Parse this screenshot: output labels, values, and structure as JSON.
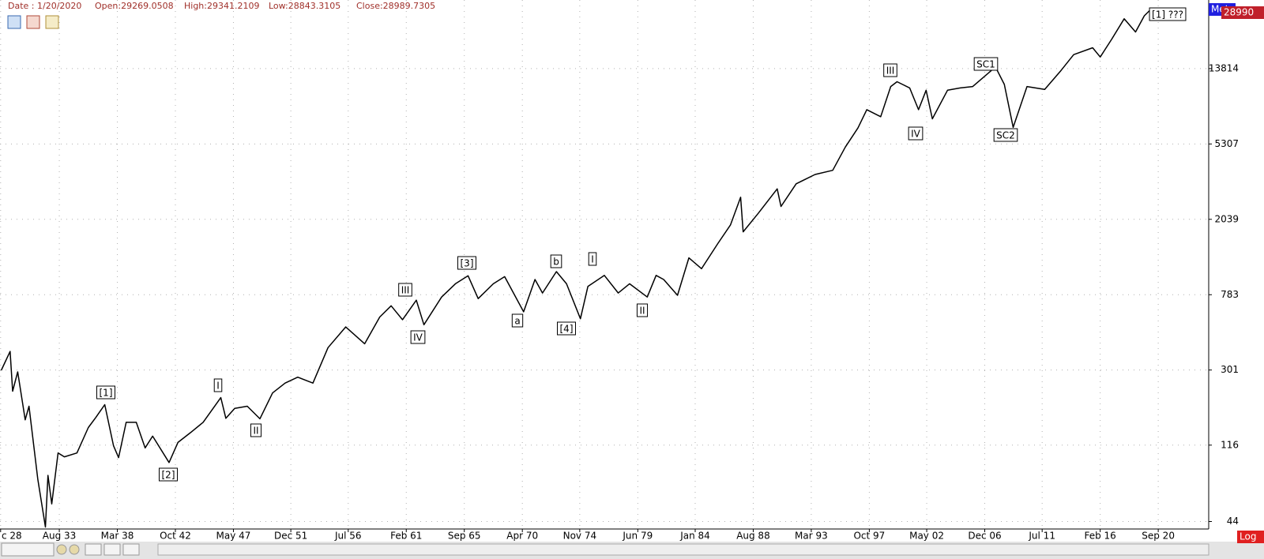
{
  "header": [
    "Date : 1/20/2020",
    "Open:29269.0508",
    "High:29341.2109",
    "Low:28843.3105",
    "Close:28989.7305"
  ],
  "side_labels": {
    "price": "28990",
    "tab": "Met",
    "scale": "Log"
  },
  "chart_data": {
    "type": "line",
    "log_scale": true,
    "grid": true,
    "color": "#000000",
    "xlim": [
      1928.9,
      2024.7
    ],
    "ylim": [
      40,
      33000
    ],
    "xticks": [
      {
        "value": 1928.95,
        "label": "c 28"
      },
      {
        "value": 1933.6,
        "label": "Aug 33"
      },
      {
        "value": 1938.2,
        "label": "Mar 38"
      },
      {
        "value": 1942.8,
        "label": "Oct 42"
      },
      {
        "value": 1947.4,
        "label": "May 47"
      },
      {
        "value": 1951.95,
        "label": "Dec 51"
      },
      {
        "value": 1956.5,
        "label": "Jul 56"
      },
      {
        "value": 1961.1,
        "label": "Feb 61"
      },
      {
        "value": 1965.7,
        "label": "Sep 65"
      },
      {
        "value": 1970.3,
        "label": "Apr 70"
      },
      {
        "value": 1974.85,
        "label": "Nov 74"
      },
      {
        "value": 1979.45,
        "label": "Jun 79"
      },
      {
        "value": 1984.0,
        "label": "Jan 84"
      },
      {
        "value": 1988.6,
        "label": "Aug 88"
      },
      {
        "value": 1993.2,
        "label": "Mar 93"
      },
      {
        "value": 1997.8,
        "label": "Oct 97"
      },
      {
        "value": 2002.35,
        "label": "May 02"
      },
      {
        "value": 2006.95,
        "label": "Dec 06"
      },
      {
        "value": 2011.5,
        "label": "Jul 11"
      },
      {
        "value": 2016.1,
        "label": "Feb 16"
      },
      {
        "value": 2020.7,
        "label": "Sep 20"
      }
    ],
    "yticks": [
      44,
      116,
      301,
      783,
      2039,
      5307,
      13814
    ],
    "x": [
      1929.0,
      1929.7,
      1929.9,
      1930.3,
      1930.9,
      1931.2,
      1931.9,
      1932.5,
      1932.7,
      1933.0,
      1933.5,
      1934.0,
      1935.0,
      1935.9,
      1936.5,
      1937.2,
      1937.9,
      1938.3,
      1938.9,
      1939.7,
      1940.4,
      1941.0,
      1942.3,
      1943.0,
      1944.0,
      1945.0,
      1946.4,
      1946.8,
      1947.5,
      1948.5,
      1949.5,
      1950.5,
      1951.5,
      1952.5,
      1953.7,
      1954.9,
      1956.3,
      1957.8,
      1959.0,
      1959.9,
      1960.8,
      1961.9,
      1962.5,
      1963.9,
      1965.0,
      1966.0,
      1966.8,
      1968.0,
      1968.9,
      1970.4,
      1971.3,
      1971.9,
      1973.0,
      1973.8,
      1974.9,
      1975.5,
      1976.8,
      1977.9,
      1978.8,
      1980.2,
      1980.9,
      1981.5,
      1982.6,
      1983.5,
      1984.5,
      1985.8,
      1986.8,
      1987.6,
      1987.8,
      1989.0,
      1990.5,
      1990.8,
      1992.0,
      1993.5,
      1994.9,
      1995.9,
      1996.9,
      1997.6,
      1998.7,
      1999.5,
      2000.0,
      2001.0,
      2001.7,
      2002.3,
      2002.8,
      2004.0,
      2005.0,
      2006.0,
      2007.8,
      2008.5,
      2009.2,
      2010.3,
      2011.7,
      2013.0,
      2014.0,
      2015.5,
      2016.1,
      2017.0,
      2018.0,
      2018.9,
      2019.6,
      2020.05
    ],
    "values": [
      300,
      381,
      230,
      294,
      160,
      190,
      75,
      41,
      79,
      55,
      105,
      100,
      105,
      145,
      165,
      194,
      115,
      99,
      155,
      155,
      112,
      130,
      93,
      120,
      136,
      155,
      212,
      163,
      185,
      190,
      162,
      225,
      255,
      275,
      255,
      400,
      520,
      420,
      590,
      680,
      570,
      730,
      535,
      760,
      900,
      995,
      745,
      900,
      985,
      630,
      950,
      800,
      1050,
      900,
      577,
      870,
      1000,
      800,
      900,
      760,
      1000,
      950,
      777,
      1250,
      1090,
      1500,
      1900,
      2700,
      1740,
      2200,
      3000,
      2400,
      3200,
      3600,
      3800,
      5100,
      6500,
      8200,
      7500,
      11000,
      11700,
      10800,
      8200,
      10500,
      7300,
      10500,
      10800,
      11000,
      14100,
      11300,
      6550,
      11000,
      10600,
      13500,
      16500,
      18000,
      16000,
      20000,
      26000,
      22000,
      27000,
      28990
    ],
    "annotations": [
      "[1]",
      "[2]",
      "I",
      "II",
      "III",
      "IV",
      "[3]",
      "a",
      "b",
      "[4]",
      "I",
      "II",
      "III",
      "IV",
      "SC1",
      "SC2",
      "[1] ???"
    ]
  }
}
